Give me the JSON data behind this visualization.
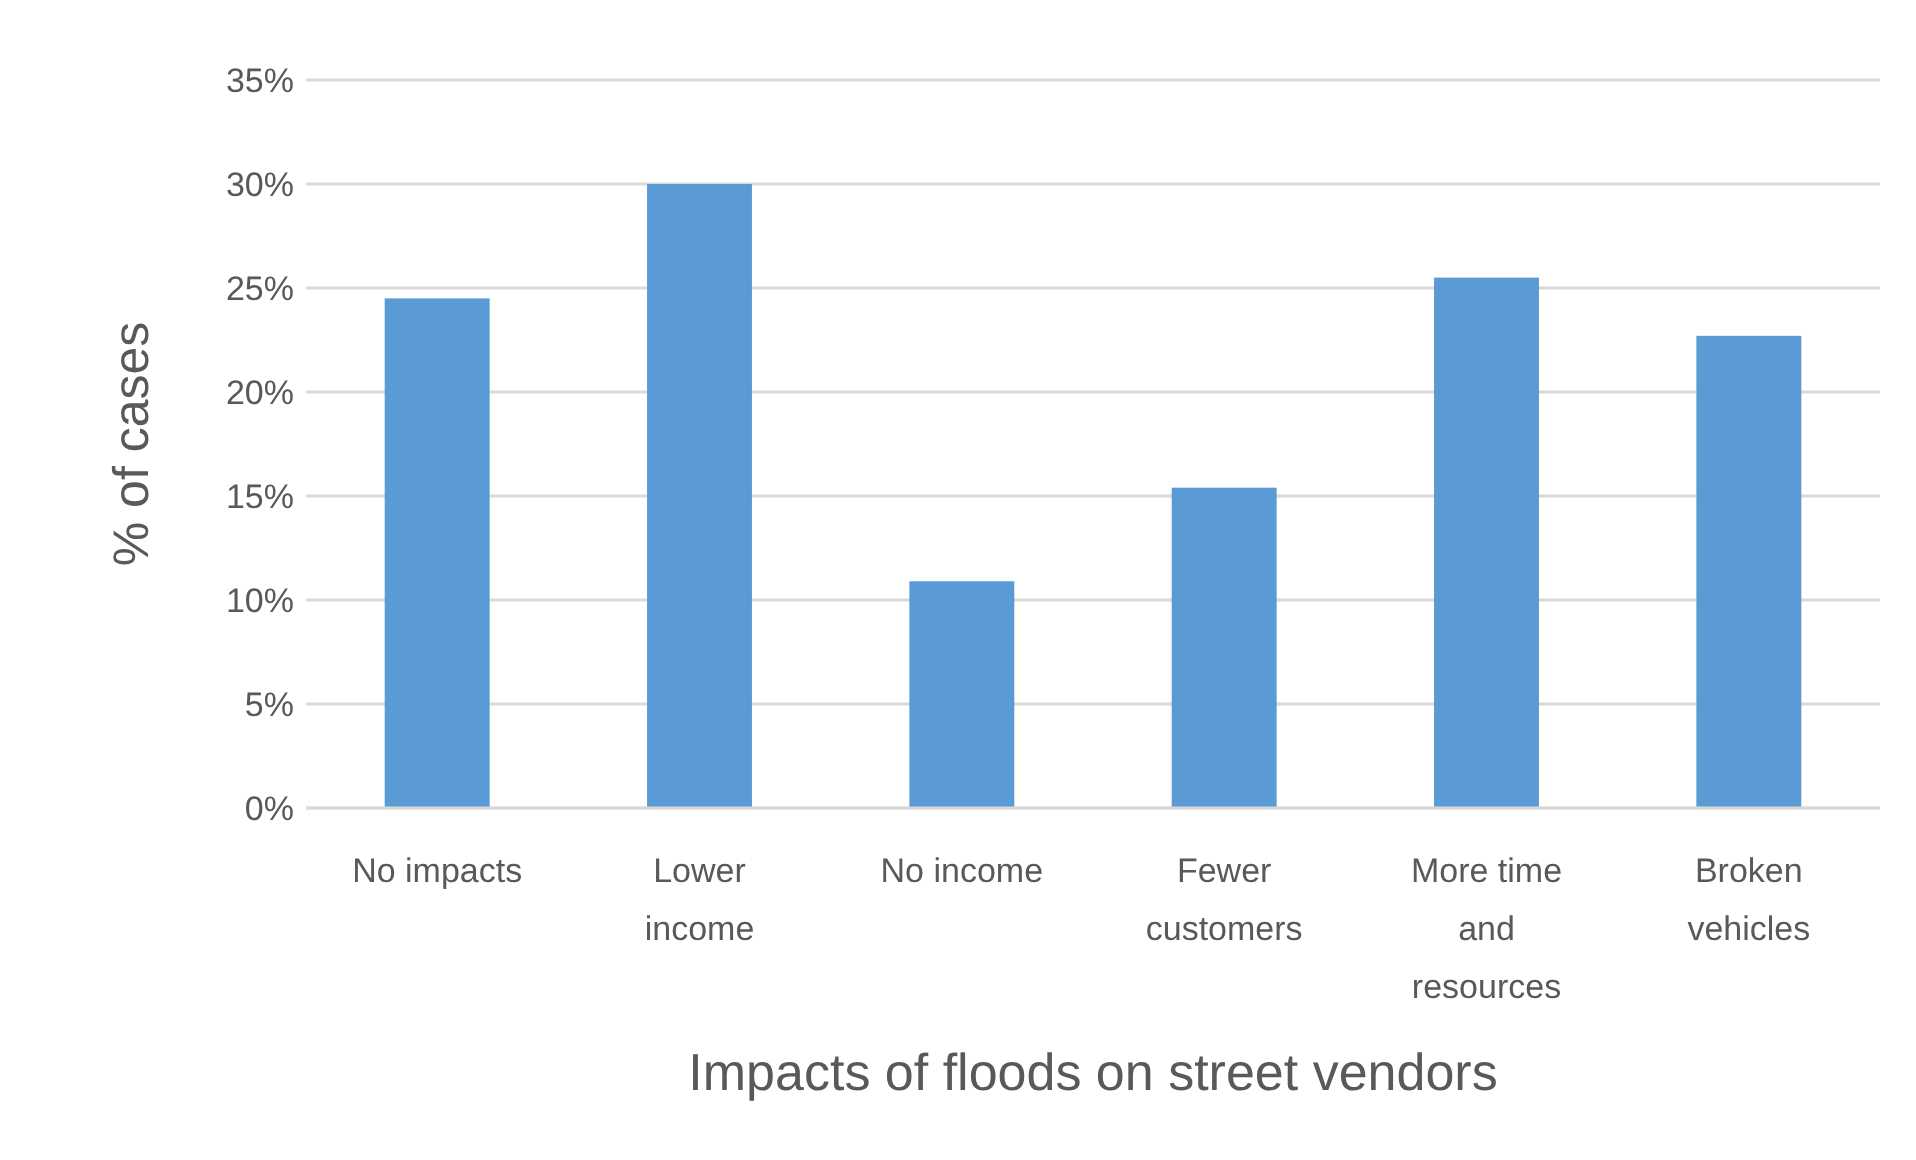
{
  "chart_data": {
    "type": "bar",
    "xlabel": "Impacts of floods on street vendors",
    "ylabel": "% of cases",
    "categories": [
      "No impacts",
      "Lower income",
      "No income",
      "Fewer customers",
      "More time and resources",
      "Broken vehicles"
    ],
    "values": [
      24.5,
      30.0,
      10.9,
      15.4,
      25.5,
      22.7
    ],
    "color": "#5b9bd5",
    "ylim": [
      0,
      35
    ],
    "yticks": [
      {
        "value": 0,
        "label": "0%"
      },
      {
        "value": 5,
        "label": "5%"
      },
      {
        "value": 10,
        "label": "10%"
      },
      {
        "value": 15,
        "label": "15%"
      },
      {
        "value": 20,
        "label": "20%"
      },
      {
        "value": 25,
        "label": "25%"
      },
      {
        "value": 30,
        "label": "30%"
      },
      {
        "value": 35,
        "label": "35%"
      }
    ],
    "grid": "y"
  }
}
